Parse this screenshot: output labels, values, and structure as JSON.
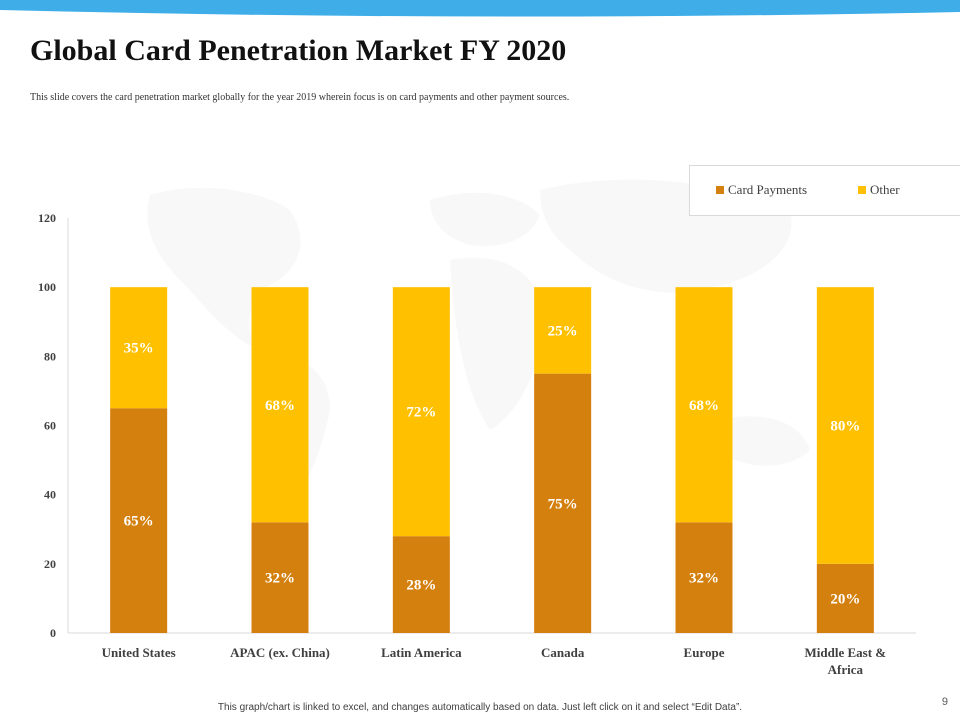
{
  "slide": {
    "title": "Global Card Penetration Market FY 2020",
    "subtitle": "This slide covers the card penetration market globally for the year 2019 wherein focus is on card payments and other payment sources.",
    "footer_note": "This graph/chart is linked to excel, and changes automatically based on data. Just left click on it and select “Edit Data”.",
    "page_number": "9"
  },
  "colors": {
    "card_payments": "#D4800F",
    "other": "#FFC000",
    "top_band": "#3FAEE8",
    "axis_text": "#404040",
    "data_label": "#FFFFFF"
  },
  "chart_data": {
    "type": "bar",
    "stacked": true,
    "categories": [
      "United States",
      "APAC (ex. China)",
      "Latin America",
      "Canada",
      "Europe",
      "Middle East & Africa"
    ],
    "series": [
      {
        "name": "Card Payments",
        "values": [
          65,
          32,
          28,
          75,
          32,
          20
        ],
        "labels": [
          "65%",
          "32%",
          "28%",
          "75%",
          "32%",
          "20%"
        ]
      },
      {
        "name": "Other",
        "values": [
          35,
          68,
          72,
          25,
          68,
          80
        ],
        "labels": [
          "35%",
          "68%",
          "72%",
          "25%",
          "68%",
          "80%"
        ]
      }
    ],
    "title": "",
    "xlabel": "",
    "ylabel": "",
    "ylim": [
      0,
      120
    ],
    "yticks": [
      "0",
      "20",
      "40",
      "60",
      "80",
      "100",
      "120"
    ],
    "legend": [
      "Card Payments",
      "Other"
    ],
    "legend_position": "top-right",
    "grid": false
  }
}
